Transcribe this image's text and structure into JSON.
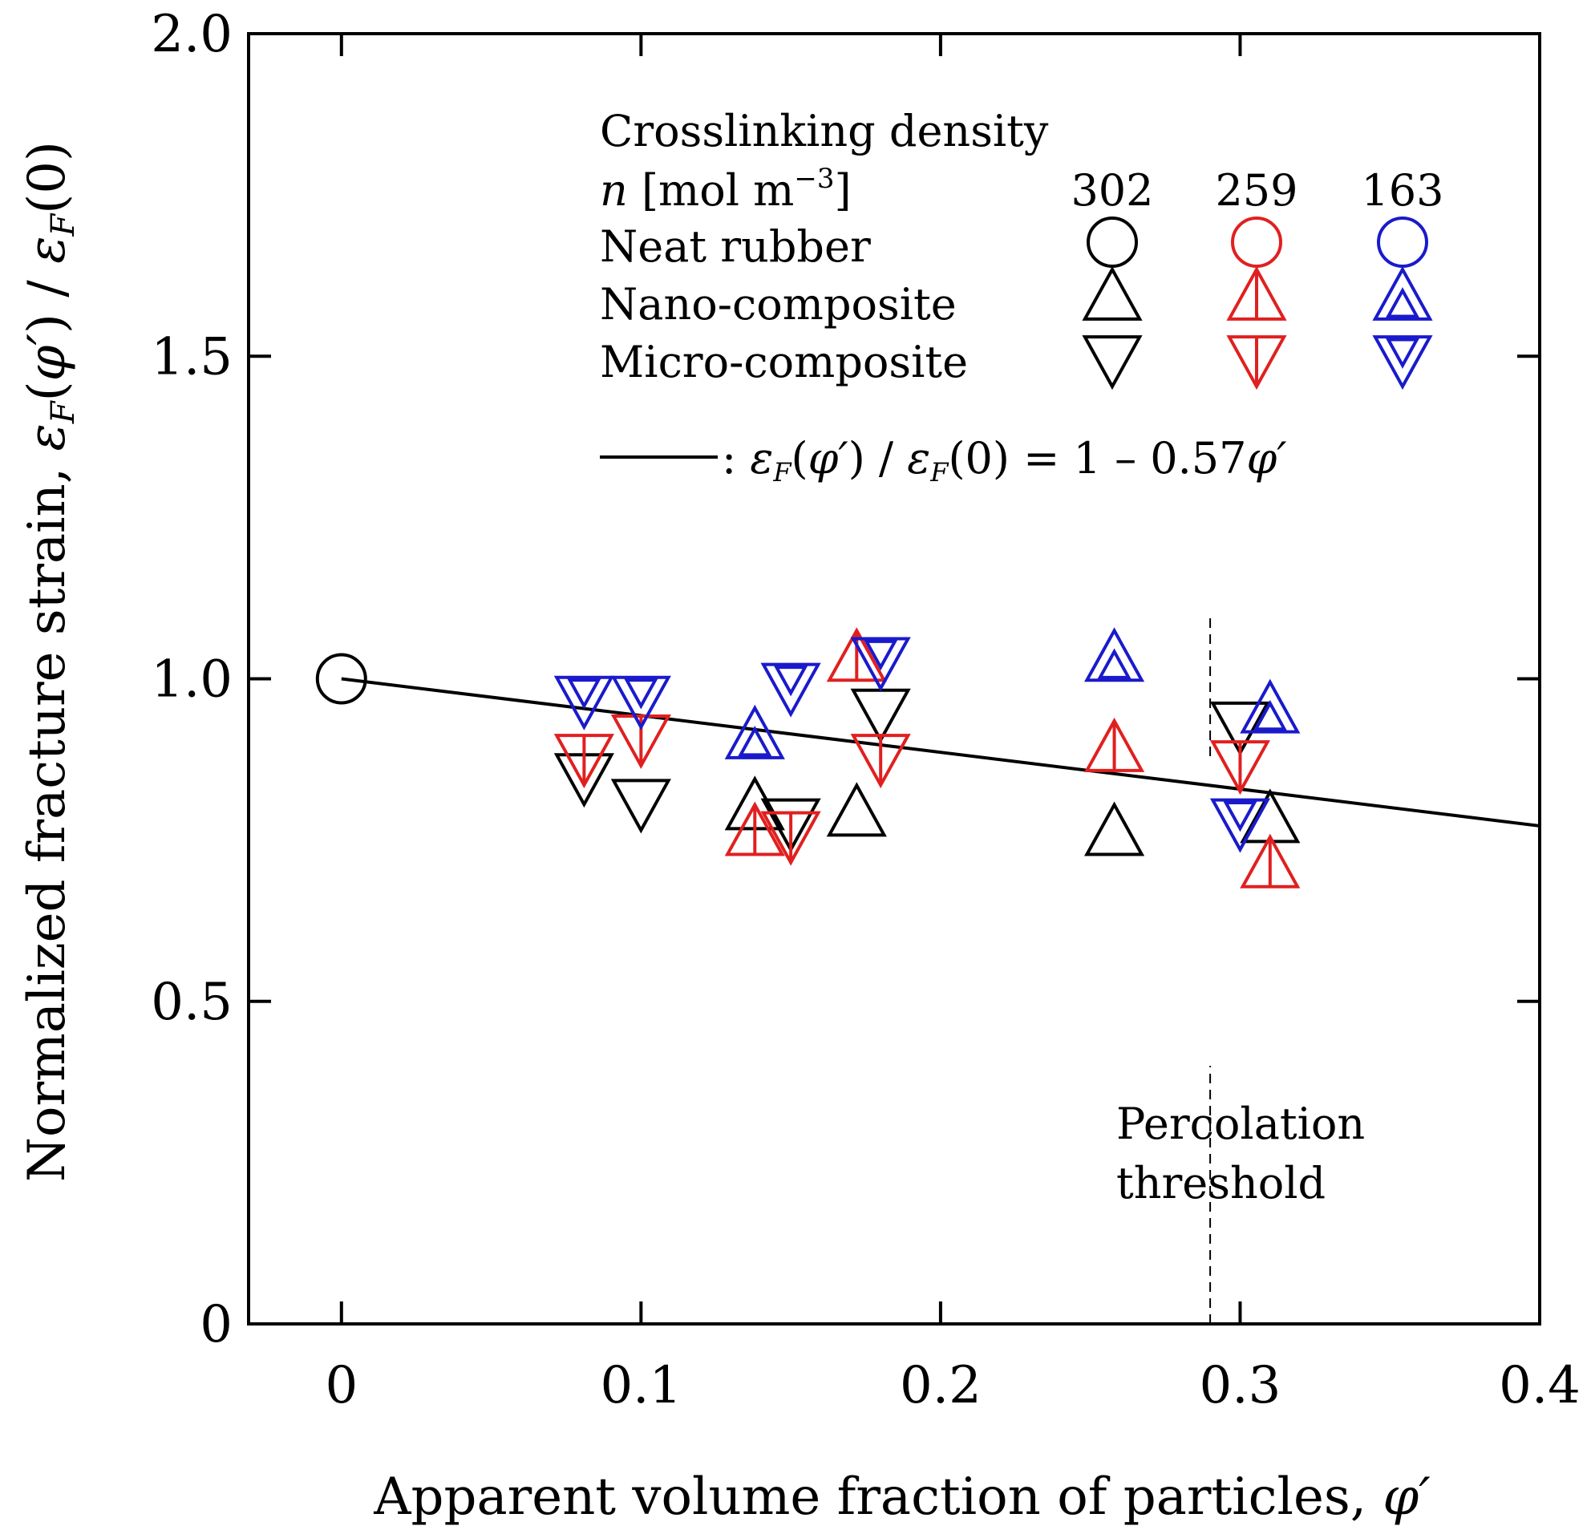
{
  "chart_data": {
    "type": "scatter",
    "xlabel": "Apparent volume fraction of particles, φ′",
    "ylabel": "Normalized fracture strain, εF(φ′) / εF(0)",
    "xlim": [
      -0.031,
      0.4
    ],
    "ylim": [
      0,
      2.0
    ],
    "x_ticks": [
      "0",
      "0.1",
      "0.2",
      "0.3",
      "0.4"
    ],
    "y_ticks": [
      "0",
      "0.5",
      "1.0",
      "1.5",
      "2.0"
    ],
    "grid": false,
    "legend": {
      "placement": "top-right",
      "title": "Crosslinking density",
      "unit_label": "n [mol m⁻³]",
      "densities": [
        "302",
        "259",
        "163"
      ],
      "rows": [
        "Neat rubber",
        "Nano-composite",
        "Micro-composite"
      ],
      "fit_line_label": ": εF(φ′) / εF(0) = 1 – 0.57φ′"
    },
    "colors": {
      "302": "#000000",
      "259": "#e02020",
      "163": "#1a1acc"
    },
    "series": [
      {
        "density": "302",
        "type": "neat",
        "points": [
          [
            0.0,
            1.0
          ]
        ]
      },
      {
        "density": "302",
        "type": "nano",
        "points": [
          [
            0.138,
            0.8
          ],
          [
            0.172,
            0.79
          ],
          [
            0.258,
            0.76
          ],
          [
            0.31,
            0.78
          ]
        ]
      },
      {
        "density": "302",
        "type": "micro",
        "points": [
          [
            0.081,
            0.85
          ],
          [
            0.1,
            0.81
          ],
          [
            0.15,
            0.78
          ],
          [
            0.18,
            0.95
          ],
          [
            0.3,
            0.93
          ]
        ]
      },
      {
        "density": "259",
        "type": "nano",
        "points": [
          [
            0.138,
            0.76
          ],
          [
            0.172,
            1.03
          ],
          [
            0.258,
            0.89
          ],
          [
            0.31,
            0.71
          ]
        ]
      },
      {
        "density": "259",
        "type": "micro",
        "points": [
          [
            0.081,
            0.88
          ],
          [
            0.1,
            0.91
          ],
          [
            0.15,
            0.76
          ],
          [
            0.18,
            0.88
          ],
          [
            0.3,
            0.87
          ]
        ]
      },
      {
        "density": "163",
        "type": "nano",
        "points": [
          [
            0.138,
            0.91
          ],
          [
            0.258,
            1.03
          ],
          [
            0.31,
            0.95
          ]
        ]
      },
      {
        "density": "163",
        "type": "micro",
        "points": [
          [
            0.081,
            0.97
          ],
          [
            0.1,
            0.97
          ],
          [
            0.15,
            0.99
          ],
          [
            0.18,
            1.03
          ],
          [
            0.3,
            0.78
          ]
        ]
      }
    ],
    "fit_line": {
      "intercept": 1.0,
      "slope": -0.57,
      "x_range": [
        0.0,
        0.4
      ]
    },
    "annotations": [
      {
        "text": "Percolation threshold",
        "lines": [
          "Percolation",
          "threshold"
        ],
        "x": 0.29
      }
    ]
  }
}
